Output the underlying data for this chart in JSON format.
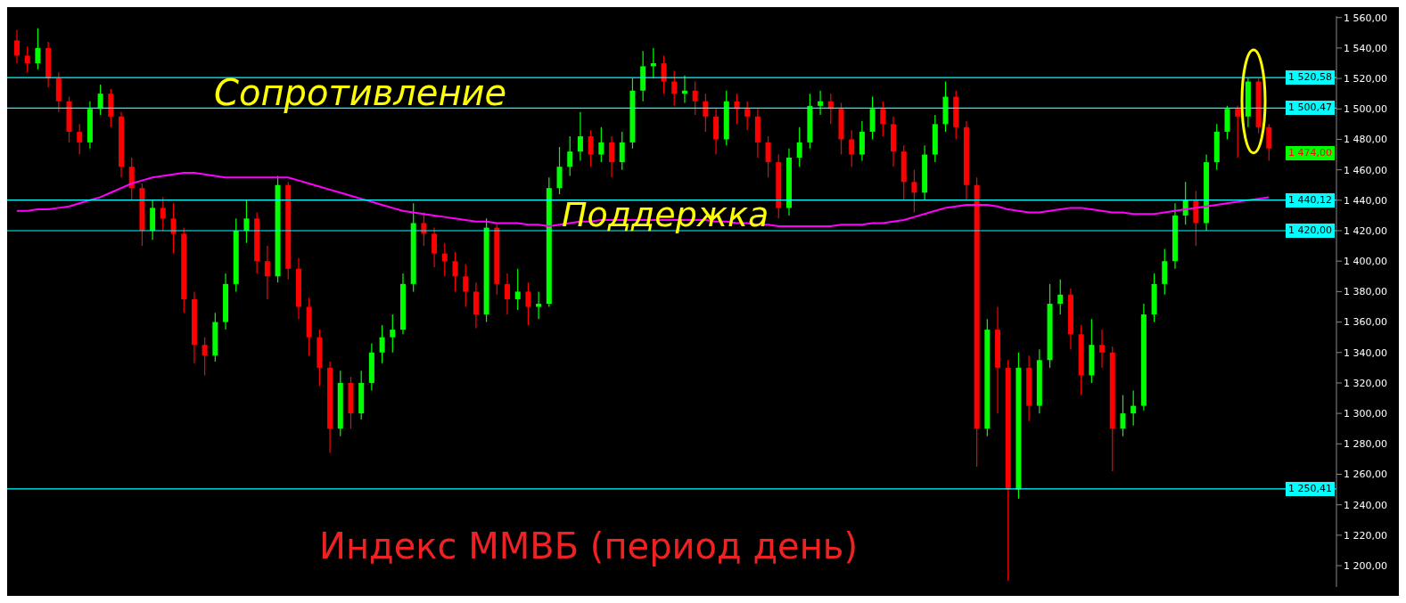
{
  "chart_data": {
    "type": "candlestick",
    "title": "Индекс ММВБ (период день)",
    "categories": [
      null,
      null,
      null,
      null,
      null,
      null,
      null,
      null,
      null,
      null,
      null,
      null,
      null,
      null,
      null,
      null,
      null,
      null,
      null,
      null,
      null,
      null,
      null,
      null,
      null,
      null,
      null,
      null,
      null,
      null,
      null,
      null,
      null,
      null,
      null,
      null,
      null,
      null,
      null,
      null,
      null,
      null,
      null,
      null,
      null,
      null,
      null,
      null,
      null,
      null,
      null,
      null,
      null,
      null,
      null,
      null,
      null,
      null,
      null,
      null,
      null,
      null,
      null,
      null,
      null,
      null,
      null,
      null,
      null,
      null,
      null,
      null,
      null,
      null,
      null,
      null,
      null,
      null,
      null,
      null,
      null,
      null,
      null,
      null,
      null,
      null,
      null,
      null,
      null,
      null,
      null,
      null,
      null,
      null,
      null,
      null,
      null,
      null,
      null,
      null,
      null,
      null,
      null,
      null,
      null,
      null,
      null,
      null,
      null,
      null,
      null,
      null,
      null,
      null,
      null,
      null,
      null,
      null,
      null,
      null,
      null
    ],
    "ohlc": [
      [
        1545,
        1552,
        1530,
        1535
      ],
      [
        1535,
        1541,
        1524,
        1530
      ],
      [
        1530,
        1553,
        1526,
        1540
      ],
      [
        1540,
        1544,
        1514,
        1520
      ],
      [
        1520,
        1524,
        1498,
        1505
      ],
      [
        1505,
        1508,
        1478,
        1485
      ],
      [
        1485,
        1490,
        1470,
        1478
      ],
      [
        1478,
        1505,
        1474,
        1500
      ],
      [
        1500,
        1516,
        1496,
        1510
      ],
      [
        1510,
        1513,
        1488,
        1495
      ],
      [
        1495,
        1498,
        1455,
        1462
      ],
      [
        1462,
        1468,
        1440,
        1448
      ],
      [
        1448,
        1451,
        1410,
        1420
      ],
      [
        1420,
        1440,
        1414,
        1435
      ],
      [
        1435,
        1442,
        1420,
        1428
      ],
      [
        1428,
        1438,
        1405,
        1418
      ],
      [
        1418,
        1422,
        1366,
        1375
      ],
      [
        1375,
        1380,
        1333,
        1345
      ],
      [
        1345,
        1350,
        1325,
        1338
      ],
      [
        1338,
        1366,
        1334,
        1360
      ],
      [
        1360,
        1392,
        1355,
        1385
      ],
      [
        1385,
        1428,
        1380,
        1420
      ],
      [
        1420,
        1440,
        1412,
        1428
      ],
      [
        1428,
        1432,
        1392,
        1400
      ],
      [
        1400,
        1410,
        1375,
        1390
      ],
      [
        1390,
        1456,
        1386,
        1450
      ],
      [
        1450,
        1452,
        1388,
        1395
      ],
      [
        1395,
        1402,
        1362,
        1370
      ],
      [
        1370,
        1376,
        1338,
        1350
      ],
      [
        1350,
        1355,
        1318,
        1330
      ],
      [
        1330,
        1334,
        1274,
        1290
      ],
      [
        1290,
        1328,
        1285,
        1320
      ],
      [
        1320,
        1324,
        1290,
        1300
      ],
      [
        1300,
        1328,
        1296,
        1320
      ],
      [
        1320,
        1346,
        1315,
        1340
      ],
      [
        1340,
        1358,
        1333,
        1350
      ],
      [
        1350,
        1365,
        1340,
        1355
      ],
      [
        1355,
        1392,
        1352,
        1385
      ],
      [
        1385,
        1438,
        1380,
        1425
      ],
      [
        1425,
        1432,
        1410,
        1418
      ],
      [
        1418,
        1422,
        1396,
        1405
      ],
      [
        1405,
        1412,
        1390,
        1400
      ],
      [
        1400,
        1406,
        1380,
        1390
      ],
      [
        1390,
        1398,
        1370,
        1380
      ],
      [
        1380,
        1386,
        1356,
        1365
      ],
      [
        1365,
        1428,
        1360,
        1422
      ],
      [
        1422,
        1424,
        1378,
        1385
      ],
      [
        1385,
        1392,
        1365,
        1375
      ],
      [
        1375,
        1395,
        1368,
        1380
      ],
      [
        1380,
        1386,
        1358,
        1370
      ],
      [
        1370,
        1380,
        1362,
        1372
      ],
      [
        1372,
        1455,
        1370,
        1448
      ],
      [
        1448,
        1475,
        1444,
        1462
      ],
      [
        1462,
        1482,
        1456,
        1472
      ],
      [
        1472,
        1498,
        1466,
        1482
      ],
      [
        1482,
        1486,
        1462,
        1470
      ],
      [
        1470,
        1488,
        1465,
        1478
      ],
      [
        1478,
        1482,
        1455,
        1465
      ],
      [
        1465,
        1485,
        1460,
        1478
      ],
      [
        1478,
        1520,
        1474,
        1512
      ],
      [
        1512,
        1538,
        1505,
        1528
      ],
      [
        1528,
        1540,
        1520,
        1530
      ],
      [
        1530,
        1535,
        1510,
        1518
      ],
      [
        1518,
        1525,
        1502,
        1510
      ],
      [
        1510,
        1522,
        1504,
        1512
      ],
      [
        1512,
        1518,
        1496,
        1505
      ],
      [
        1505,
        1510,
        1485,
        1495
      ],
      [
        1495,
        1500,
        1470,
        1480
      ],
      [
        1480,
        1512,
        1476,
        1505
      ],
      [
        1505,
        1510,
        1490,
        1500
      ],
      [
        1500,
        1505,
        1486,
        1495
      ],
      [
        1495,
        1500,
        1468,
        1478
      ],
      [
        1478,
        1482,
        1455,
        1465
      ],
      [
        1465,
        1470,
        1428,
        1435
      ],
      [
        1435,
        1474,
        1430,
        1468
      ],
      [
        1468,
        1488,
        1462,
        1478
      ],
      [
        1478,
        1510,
        1474,
        1502
      ],
      [
        1502,
        1512,
        1496,
        1505
      ],
      [
        1505,
        1510,
        1490,
        1500
      ],
      [
        1500,
        1504,
        1470,
        1480
      ],
      [
        1480,
        1486,
        1462,
        1470
      ],
      [
        1470,
        1492,
        1466,
        1485
      ],
      [
        1485,
        1508,
        1480,
        1500
      ],
      [
        1500,
        1505,
        1482,
        1490
      ],
      [
        1490,
        1495,
        1462,
        1472
      ],
      [
        1472,
        1476,
        1440,
        1452
      ],
      [
        1452,
        1460,
        1432,
        1445
      ],
      [
        1445,
        1476,
        1440,
        1470
      ],
      [
        1470,
        1496,
        1465,
        1490
      ],
      [
        1490,
        1518,
        1485,
        1508
      ],
      [
        1508,
        1512,
        1480,
        1488
      ],
      [
        1488,
        1492,
        1440,
        1450
      ],
      [
        1450,
        1455,
        1265,
        1290
      ],
      [
        1290,
        1362,
        1285,
        1355
      ],
      [
        1355,
        1370,
        1300,
        1330
      ],
      [
        1330,
        1335,
        1190,
        1250
      ],
      [
        1250,
        1340,
        1244,
        1330
      ],
      [
        1330,
        1338,
        1295,
        1305
      ],
      [
        1305,
        1342,
        1300,
        1335
      ],
      [
        1335,
        1385,
        1330,
        1372
      ],
      [
        1372,
        1388,
        1365,
        1378
      ],
      [
        1378,
        1382,
        1342,
        1352
      ],
      [
        1352,
        1358,
        1312,
        1325
      ],
      [
        1325,
        1362,
        1320,
        1345
      ],
      [
        1345,
        1355,
        1330,
        1340
      ],
      [
        1340,
        1344,
        1262,
        1290
      ],
      [
        1290,
        1312,
        1285,
        1300
      ],
      [
        1300,
        1315,
        1292,
        1305
      ],
      [
        1305,
        1372,
        1302,
        1365
      ],
      [
        1365,
        1392,
        1360,
        1385
      ],
      [
        1385,
        1408,
        1378,
        1400
      ],
      [
        1400,
        1438,
        1395,
        1430
      ],
      [
        1430,
        1452,
        1424,
        1440
      ],
      [
        1440,
        1446,
        1410,
        1425
      ],
      [
        1425,
        1470,
        1420,
        1465
      ],
      [
        1465,
        1490,
        1460,
        1485
      ],
      [
        1485,
        1502,
        1480,
        1500
      ],
      [
        1500,
        1502,
        1468,
        1495
      ],
      [
        1495,
        1520,
        1488,
        1518
      ],
      [
        1518,
        1520,
        1484,
        1488
      ],
      [
        1488,
        1490,
        1466,
        1474
      ]
    ],
    "series": [
      {
        "type": "line",
        "color": "#ff00ff",
        "values": [
          1433,
          1433,
          1434,
          1434,
          1435,
          1436,
          1438,
          1440,
          1442,
          1445,
          1448,
          1451,
          1453,
          1455,
          1456,
          1457,
          1458,
          1458,
          1457,
          1456,
          1455,
          1455,
          1455,
          1455,
          1455,
          1455,
          1455,
          1453,
          1451,
          1449,
          1447,
          1445,
          1443,
          1441,
          1439,
          1437,
          1435,
          1433,
          1432,
          1431,
          1430,
          1429,
          1428,
          1427,
          1426,
          1426,
          1425,
          1425,
          1425,
          1424,
          1424,
          1423,
          1424,
          1425,
          1426,
          1426,
          1427,
          1427,
          1427,
          1427,
          1427,
          1427,
          1427,
          1427,
          1427,
          1427,
          1427,
          1426,
          1426,
          1425,
          1425,
          1424,
          1424,
          1423,
          1423,
          1423,
          1423,
          1423,
          1423,
          1424,
          1424,
          1424,
          1425,
          1425,
          1426,
          1427,
          1429,
          1431,
          1433,
          1435,
          1436,
          1437,
          1437,
          1437,
          1436,
          1434,
          1433,
          1432,
          1432,
          1433,
          1434,
          1435,
          1435,
          1434,
          1433,
          1432,
          1432,
          1431,
          1431,
          1431,
          1432,
          1433,
          1434,
          1435,
          1436,
          1437,
          1438,
          1439,
          1440,
          1441,
          1442
        ]
      }
    ],
    "ylim": [
      1186,
      1561
    ],
    "yticks": [
      {
        "value": 1200,
        "label": "1 200,00"
      },
      {
        "value": 1220,
        "label": "1 220,00"
      },
      {
        "value": 1240,
        "label": "1 240,00"
      },
      {
        "value": 1260,
        "label": "1 260,00"
      },
      {
        "value": 1280,
        "label": "1 280,00"
      },
      {
        "value": 1300,
        "label": "1 300,00"
      },
      {
        "value": 1320,
        "label": "1 320,00"
      },
      {
        "value": 1340,
        "label": "1 340,00"
      },
      {
        "value": 1360,
        "label": "1 360,00"
      },
      {
        "value": 1380,
        "label": "1 380,00"
      },
      {
        "value": 1400,
        "label": "1 400,00"
      },
      {
        "value": 1420,
        "label": "1 420,00"
      },
      {
        "value": 1440,
        "label": "1 440,00"
      },
      {
        "value": 1460,
        "label": "1 460,00"
      },
      {
        "value": 1480,
        "label": "1 480,00"
      },
      {
        "value": 1500,
        "label": "1 500,00"
      },
      {
        "value": 1520,
        "label": "1 520,00"
      },
      {
        "value": 1540,
        "label": "1 540,00"
      },
      {
        "value": 1560,
        "label": "1 560,00"
      }
    ],
    "ref_lines": [
      {
        "axis": "y",
        "value": 1520.58,
        "label": "1 520,58",
        "color": "#00ffff"
      },
      {
        "axis": "y",
        "value": 1500.47,
        "label": "1 500,47",
        "color": "#00ffff"
      },
      {
        "axis": "y",
        "value": 1440.12,
        "label": "1 440,12",
        "color": "#00ffff"
      },
      {
        "axis": "y",
        "value": 1420,
        "label": "1 420,00",
        "color": "#00ffff"
      },
      {
        "axis": "y",
        "value": 1250.41,
        "label": "1 250,41",
        "color": "#00ffff"
      }
    ],
    "annotations": [
      "Сопротивление",
      "Поддержка",
      "1 474,00"
    ],
    "tick_labels": "y"
  }
}
